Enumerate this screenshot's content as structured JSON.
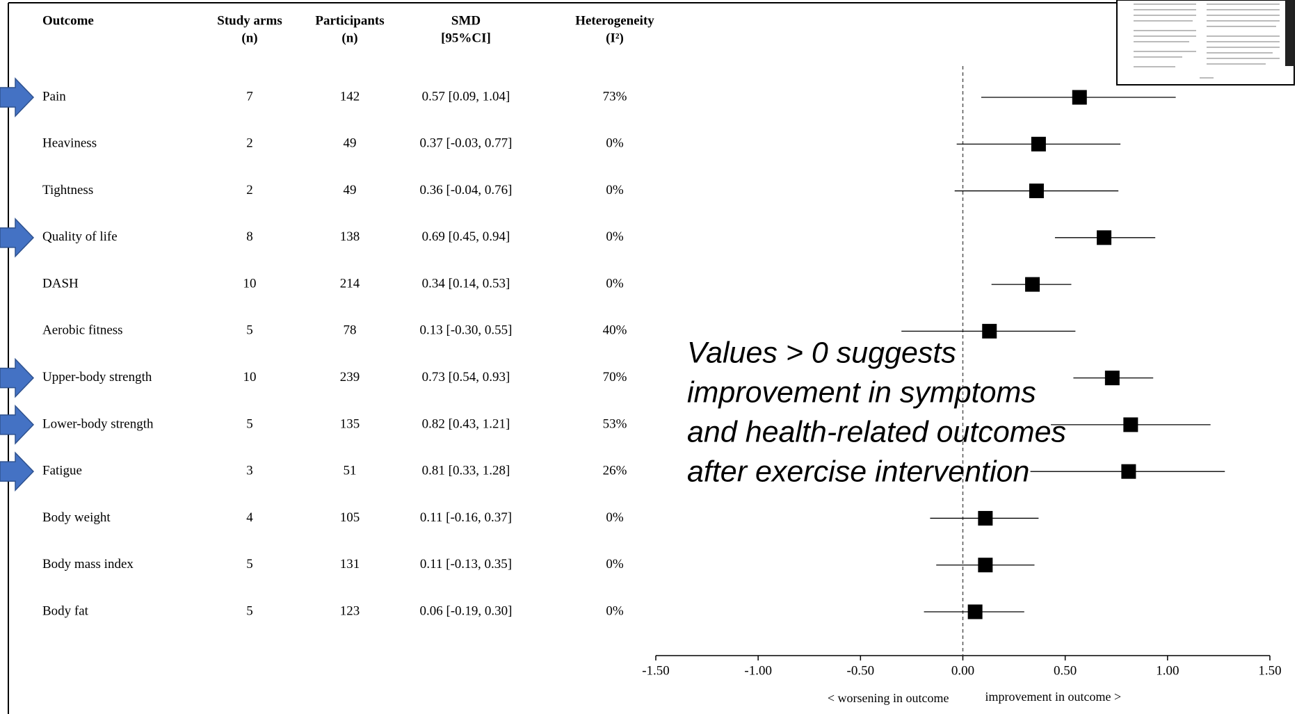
{
  "chart_data": {
    "type": "forest",
    "headers": {
      "outcome": [
        "Outcome"
      ],
      "arms": [
        "Study arms",
        "(n)"
      ],
      "participants": [
        "Participants",
        "(n)"
      ],
      "smd": [
        "SMD",
        "[95%CI]"
      ],
      "heterogeneity": [
        "Heterogeneity",
        "(I²)"
      ]
    },
    "categories": [
      "Pain",
      "Heaviness",
      "Tightness",
      "Quality of life",
      "DASH",
      "Aerobic fitness",
      "Upper-body strength",
      "Lower-body strength",
      "Fatigue",
      "Body weight",
      "Body mass index",
      "Body fat"
    ],
    "highlight": [
      true,
      false,
      false,
      true,
      false,
      false,
      true,
      true,
      true,
      false,
      false,
      false
    ],
    "arms": [
      7,
      2,
      2,
      8,
      10,
      5,
      10,
      5,
      3,
      4,
      5,
      5
    ],
    "participants": [
      142,
      49,
      49,
      138,
      214,
      78,
      239,
      135,
      51,
      105,
      131,
      123
    ],
    "values": [
      0.57,
      0.37,
      0.36,
      0.69,
      0.34,
      0.13,
      0.73,
      0.82,
      0.81,
      0.11,
      0.11,
      0.06
    ],
    "lower": [
      0.09,
      -0.03,
      -0.04,
      0.45,
      0.14,
      -0.3,
      0.54,
      0.43,
      0.33,
      -0.16,
      -0.13,
      -0.19
    ],
    "upper": [
      1.04,
      0.77,
      0.76,
      0.94,
      0.53,
      0.55,
      0.93,
      1.21,
      1.28,
      0.37,
      0.35,
      0.3
    ],
    "value_labels": [
      "0.57 [0.09, 1.04]",
      "0.37 [-0.03, 0.77]",
      "0.36 [-0.04, 0.76]",
      "0.69 [0.45, 0.94]",
      "0.34 [0.14, 0.53]",
      "0.13 [-0.30, 0.55]",
      "0.73 [0.54, 0.93]",
      "0.82 [0.43, 1.21]",
      "0.81 [0.33, 1.28]",
      "0.11 [-0.16, 0.37]",
      "0.11 [-0.13, 0.35]",
      "0.06 [-0.19, 0.30]"
    ],
    "heterogeneity": [
      73,
      0,
      0,
      0,
      0,
      40,
      70,
      53,
      26,
      0,
      0,
      0
    ],
    "heterogeneity_labels": [
      "73%",
      "0%",
      "0%",
      "0%",
      "0%",
      "40%",
      "70%",
      "53%",
      "26%",
      "0%",
      "0%",
      "0%"
    ],
    "xlim": [
      -1.5,
      1.5
    ],
    "xticks": [
      {
        "value": -1.5,
        "label": "-1.50"
      },
      {
        "value": -1,
        "label": "-1.00"
      },
      {
        "value": -0.5,
        "label": "-0.50"
      },
      {
        "value": 0,
        "label": "0.00"
      },
      {
        "value": 0.5,
        "label": "0.50"
      },
      {
        "value": 1,
        "label": "1.00"
      },
      {
        "value": 1.5,
        "label": "1.50"
      }
    ],
    "xlabel_left": "< worsening in outcome",
    "xlabel_right": "improvement in outcome >",
    "annotation": [
      "Values > 0 suggests",
      "improvement in symptoms",
      "and health-related outcomes",
      "after exercise intervention"
    ],
    "color": "#000000",
    "arrow_color": "#4472c4"
  }
}
